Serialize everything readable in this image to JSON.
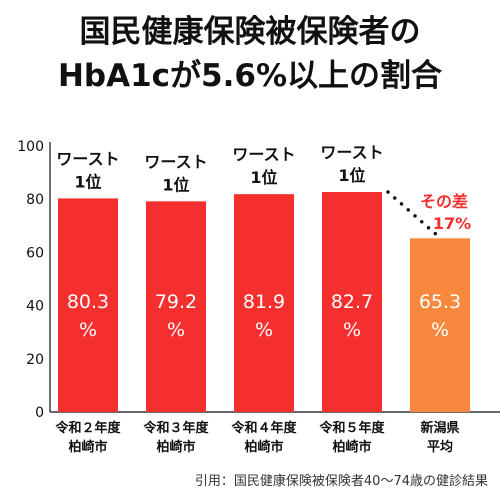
{
  "title_line1": "国民健康保険被保険者の",
  "title_line2": "HbA1cが5.6%以上の割合",
  "source": "引用：国民健康保険被保険者40〜74歳の健診結果",
  "colors": {
    "bar_main": "#f52e2e",
    "bar_avg": "#f7883e",
    "value_text": "#ffffff",
    "annotation": "#f52e2e"
  },
  "chart_data": {
    "type": "bar",
    "categories": [
      [
        "令和２年度",
        "柏崎市"
      ],
      [
        "令和３年度",
        "柏崎市"
      ],
      [
        "令和４年度",
        "柏崎市"
      ],
      [
        "令和５年度",
        "柏崎市"
      ],
      [
        "新潟県",
        "平均"
      ]
    ],
    "values": [
      80.3,
      79.2,
      81.9,
      82.7,
      65.3
    ],
    "value_labels": [
      [
        "80.3",
        "%"
      ],
      [
        "79.2",
        "%"
      ],
      [
        "81.9",
        "%"
      ],
      [
        "82.7",
        "%"
      ],
      [
        "65.3",
        "%"
      ]
    ],
    "bar_labels": [
      [
        "ワースト",
        "1位"
      ],
      [
        "ワースト",
        "1位"
      ],
      [
        "ワースト",
        "1位"
      ],
      [
        "ワースト",
        "1位"
      ],
      null
    ],
    "highlight": [
      false,
      false,
      false,
      false,
      true
    ],
    "yticks": [
      "0",
      "20",
      "40",
      "60",
      "80",
      "100"
    ],
    "ylim": [
      0,
      100
    ],
    "annotation": [
      "その差",
      "17%"
    ],
    "grid": false
  }
}
